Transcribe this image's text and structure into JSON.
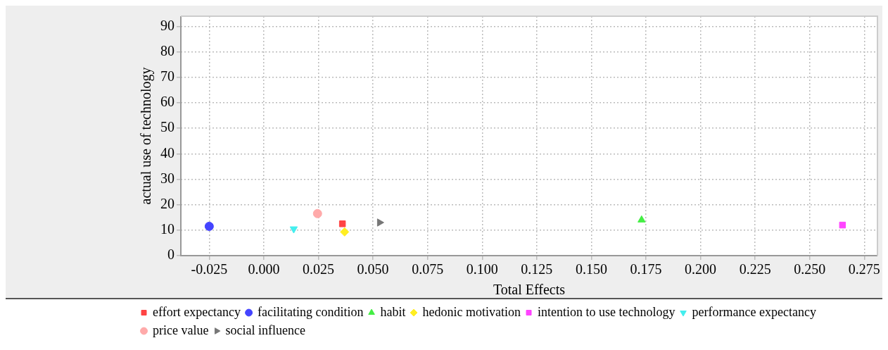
{
  "chart_data": {
    "type": "scatter",
    "xlabel": "Total Effects",
    "ylabel": "actual use of technology",
    "xlim": [
      -0.038,
      0.281
    ],
    "xticks": [
      {
        "value": -0.025,
        "label": "-0.025"
      },
      {
        "value": 0,
        "label": "0.000"
      },
      {
        "value": 0.025,
        "label": "0.025"
      },
      {
        "value": 0.05,
        "label": "0.050"
      },
      {
        "value": 0.075,
        "label": "0.075"
      },
      {
        "value": 0.1,
        "label": "0.100"
      },
      {
        "value": 0.125,
        "label": "0.125"
      },
      {
        "value": 0.15,
        "label": "0.150"
      },
      {
        "value": 0.175,
        "label": "0.175"
      },
      {
        "value": 0.2,
        "label": "0.200"
      },
      {
        "value": 0.225,
        "label": "0.225"
      },
      {
        "value": 0.25,
        "label": "0.250"
      },
      {
        "value": 0.275,
        "label": "0.275"
      }
    ],
    "ylim": [
      0,
      94
    ],
    "yticks": [
      0,
      10,
      20,
      30,
      40,
      50,
      60,
      70,
      80,
      90
    ],
    "grid": true,
    "legend": "bottom",
    "series": [
      {
        "name": "effort expectancy",
        "color": "#ff4444",
        "marker": "square",
        "x": [
          0.036
        ],
        "values": [
          12.5
        ]
      },
      {
        "name": "facilitating condition",
        "color": "#4444ff",
        "marker": "circle",
        "x": [
          -0.025
        ],
        "values": [
          11.5
        ]
      },
      {
        "name": "habit",
        "color": "#44ee44",
        "marker": "triangle",
        "x": [
          0.173
        ],
        "values": [
          14
        ]
      },
      {
        "name": "hedonic motivation",
        "color": "#ffee22",
        "marker": "diamond",
        "x": [
          0.037
        ],
        "values": [
          9.3
        ]
      },
      {
        "name": "intention to use technology",
        "color": "#ff44ff",
        "marker": "square",
        "x": [
          0.265
        ],
        "values": [
          12
        ]
      },
      {
        "name": "performance expectancy",
        "color": "#44eeee",
        "marker": "triangle-down",
        "x": [
          0.0137
        ],
        "values": [
          10.5
        ]
      },
      {
        "name": "price value",
        "color": "#ffaaaa",
        "marker": "circle",
        "x": [
          0.0246
        ],
        "values": [
          16.5
        ]
      },
      {
        "name": "social influence",
        "color": "#777777",
        "marker": "triangle-right",
        "x": [
          0.053
        ],
        "values": [
          13
        ]
      }
    ]
  }
}
